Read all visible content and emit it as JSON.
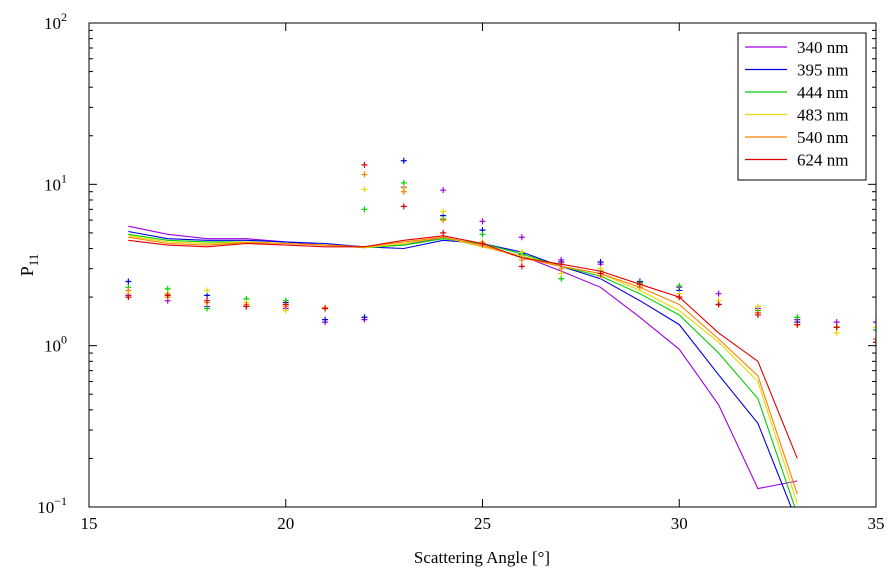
{
  "chart_data": {
    "type": "line",
    "xlabel": "Scattering Angle [°]",
    "ylabel": "P",
    "ylabel_sub": "11",
    "xlim": [
      15,
      35
    ],
    "ylim": [
      0.1,
      100
    ],
    "yscale": "log",
    "x_ticks": [
      15,
      20,
      25,
      30,
      35
    ],
    "y_ticks": [
      {
        "value": 0.1,
        "base": "10",
        "exp": "−1"
      },
      {
        "value": 1,
        "base": "10",
        "exp": "0"
      },
      {
        "value": 10,
        "base": "10",
        "exp": "1"
      },
      {
        "value": 100,
        "base": "10",
        "exp": "2"
      }
    ],
    "grid": false,
    "legend_position": "top-right",
    "series": [
      {
        "name": "340 nm",
        "color": "#a000e0",
        "line_x": [
          16,
          17,
          18,
          19,
          20,
          21,
          22,
          23,
          24,
          25,
          26,
          27,
          28,
          29,
          30,
          31,
          32,
          33
        ],
        "line_y": [
          5.5,
          4.9,
          4.6,
          4.6,
          4.4,
          4.2,
          4.1,
          4.2,
          4.7,
          4.1,
          3.6,
          2.9,
          2.3,
          1.5,
          0.95,
          0.43,
          0.13,
          0.145
        ],
        "points_x": [
          16,
          17,
          18,
          19,
          20,
          21,
          22,
          23,
          24,
          25,
          26,
          27,
          28,
          29,
          30,
          31,
          32,
          33,
          34,
          35
        ],
        "points_y": [
          2.05,
          1.9,
          1.75,
          1.75,
          1.7,
          1.4,
          1.45,
          9.6,
          9.2,
          5.9,
          4.7,
          3.4,
          3.2,
          2.45,
          2.3,
          2.1,
          1.7,
          1.45,
          1.4,
          1.4
        ]
      },
      {
        "name": "395 nm",
        "color": "#0000e0",
        "line_x": [
          16,
          17,
          18,
          19,
          20,
          21,
          22,
          23,
          24,
          25,
          26,
          27,
          28,
          29,
          30,
          31,
          32,
          33
        ],
        "line_y": [
          5.1,
          4.6,
          4.5,
          4.5,
          4.4,
          4.3,
          4.1,
          4.0,
          4.5,
          4.3,
          3.8,
          3.1,
          2.6,
          1.9,
          1.35,
          0.66,
          0.33,
          0.08
        ],
        "points_x": [
          16,
          17,
          18,
          19,
          20,
          21,
          22,
          23,
          24,
          25,
          26,
          27,
          28,
          29,
          30,
          31,
          32,
          33,
          34,
          35
        ],
        "points_y": [
          2.5,
          2.1,
          2.05,
          1.75,
          1.85,
          1.45,
          1.5,
          14.0,
          6.4,
          5.2,
          3.7,
          3.3,
          3.3,
          2.5,
          2.2,
          1.8,
          1.6,
          1.4,
          1.3,
          1.1
        ]
      },
      {
        "name": "444 nm",
        "color": "#00d000",
        "line_x": [
          16,
          17,
          18,
          19,
          20,
          21,
          22,
          23,
          24,
          25,
          26,
          27,
          28,
          29,
          30,
          31,
          32,
          33
        ],
        "line_y": [
          4.9,
          4.5,
          4.4,
          4.4,
          4.3,
          4.2,
          4.05,
          4.2,
          4.6,
          4.3,
          3.7,
          3.1,
          2.7,
          2.1,
          1.55,
          0.9,
          0.47,
          0.09
        ],
        "points_x": [
          16,
          17,
          18,
          19,
          20,
          21,
          22,
          23,
          24,
          25,
          26,
          27,
          28,
          29,
          30,
          31,
          32,
          33,
          34,
          35
        ],
        "points_y": [
          2.3,
          2.25,
          1.7,
          1.95,
          1.9,
          1.7,
          7.0,
          10.2,
          6.1,
          4.9,
          3.6,
          2.6,
          2.9,
          2.45,
          2.35,
          1.8,
          1.65,
          1.5,
          1.3,
          1.25
        ]
      },
      {
        "name": "483 nm",
        "color": "#e8d800",
        "line_x": [
          16,
          17,
          18,
          19,
          20,
          21,
          22,
          23,
          24,
          25,
          26,
          27,
          28,
          29,
          30,
          31,
          32,
          33
        ],
        "line_y": [
          4.8,
          4.4,
          4.3,
          4.4,
          4.3,
          4.2,
          4.05,
          4.3,
          4.7,
          4.1,
          3.6,
          3.1,
          2.8,
          2.2,
          1.65,
          1.05,
          0.6,
          0.105
        ],
        "points_x": [
          16,
          17,
          18,
          19,
          20,
          21,
          22,
          23,
          24,
          25,
          26,
          27,
          28,
          29,
          30,
          31,
          32,
          33,
          34,
          35
        ],
        "points_y": [
          2.1,
          2.1,
          2.2,
          1.85,
          1.65,
          1.7,
          9.3,
          9.5,
          6.8,
          4.4,
          3.8,
          2.8,
          3.0,
          2.3,
          2.1,
          1.9,
          1.75,
          1.35,
          1.2,
          1.3
        ]
      },
      {
        "name": "540 nm",
        "color": "#ff8000",
        "line_x": [
          16,
          17,
          18,
          19,
          20,
          21,
          22,
          23,
          24,
          25,
          26,
          27,
          28,
          29,
          30,
          31,
          32,
          33
        ],
        "line_y": [
          4.7,
          4.3,
          4.2,
          4.35,
          4.3,
          4.2,
          4.1,
          4.4,
          4.7,
          4.2,
          3.5,
          3.1,
          2.8,
          2.3,
          1.8,
          1.1,
          0.65,
          0.12
        ],
        "points_x": [
          16,
          17,
          18,
          19,
          20,
          21,
          22,
          23,
          24,
          25,
          26,
          27,
          28,
          29,
          30,
          31,
          32,
          33,
          34,
          35
        ],
        "points_y": [
          2.2,
          2.0,
          1.85,
          1.8,
          1.75,
          1.72,
          11.5,
          9.0,
          6.0,
          4.2,
          3.4,
          3.0,
          2.7,
          2.3,
          2.0,
          1.8,
          1.6,
          1.35,
          1.3,
          1.1
        ]
      },
      {
        "name": "624 nm",
        "color": "#e00000",
        "line_x": [
          16,
          17,
          18,
          19,
          20,
          21,
          22,
          23,
          24,
          25,
          26,
          27,
          28,
          29,
          30,
          31,
          32,
          33
        ],
        "line_y": [
          4.5,
          4.2,
          4.1,
          4.3,
          4.2,
          4.1,
          4.1,
          4.5,
          4.8,
          4.3,
          3.5,
          3.2,
          2.9,
          2.4,
          2.0,
          1.2,
          0.8,
          0.2
        ],
        "points_x": [
          16,
          17,
          18,
          19,
          20,
          21,
          22,
          23,
          24,
          25,
          26,
          27,
          28,
          29,
          30,
          31,
          32,
          33,
          34,
          35
        ],
        "points_y": [
          2.0,
          2.05,
          1.9,
          1.75,
          1.8,
          1.7,
          13.2,
          7.3,
          5.0,
          4.3,
          3.1,
          3.2,
          2.8,
          2.4,
          2.0,
          1.8,
          1.55,
          1.35,
          1.3,
          1.05
        ]
      }
    ]
  }
}
